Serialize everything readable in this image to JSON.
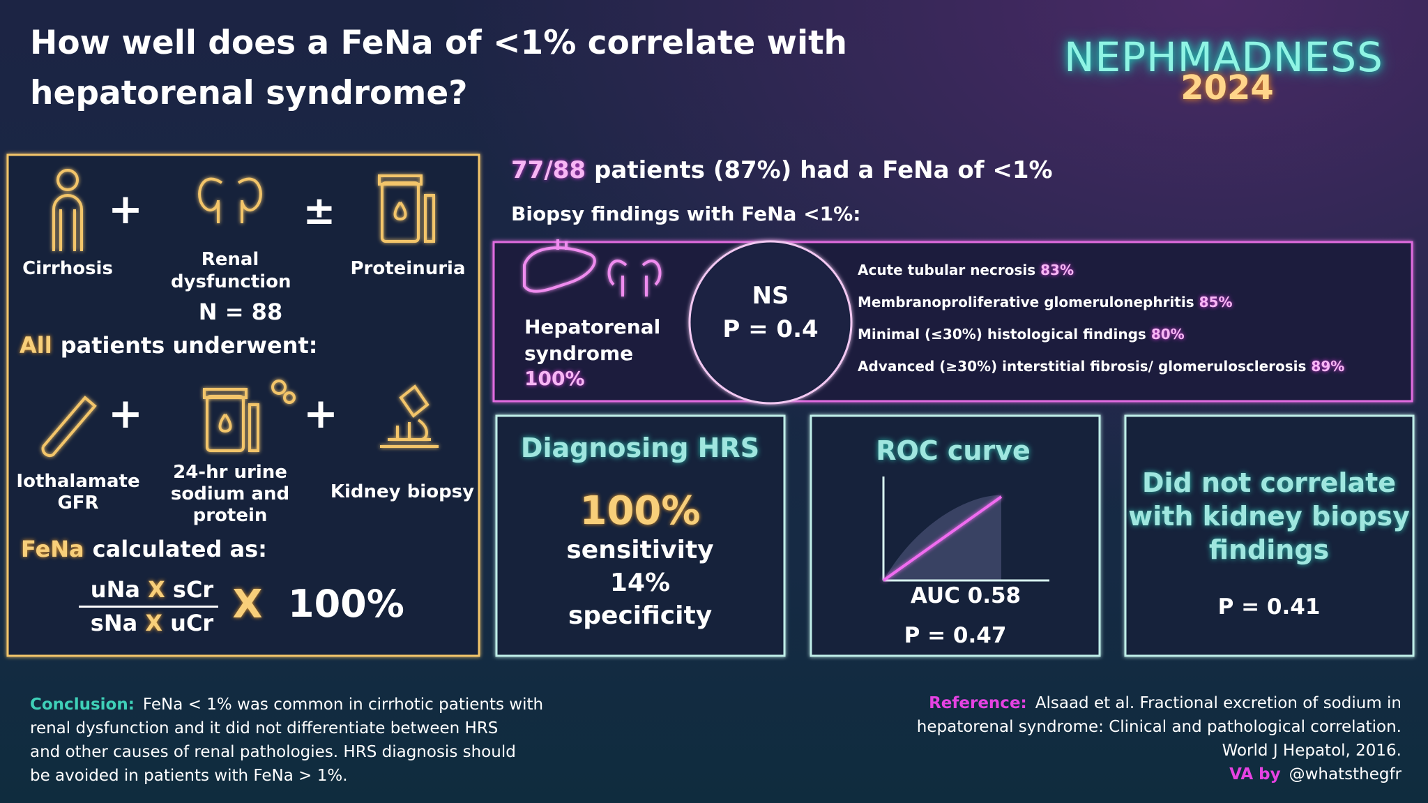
{
  "header": {
    "title_lines": [
      "How well does a FeNa of <1% correlate with",
      "hepatorenal syndrome?"
    ],
    "logo": {
      "name": "NEPHMADNESS",
      "year": "2024"
    }
  },
  "study": {
    "criteria": [
      "Cirrhosis",
      "Renal dysfunction",
      "Proteinuria"
    ],
    "criteria_operators": [
      "+",
      "±"
    ],
    "n": "N = 88",
    "underwent": {
      "highlight": "All",
      "text": "patients underwent:"
    },
    "tests": [
      "Iothalamate GFR",
      "24-hr urine sodium and protein",
      "Kidney biopsy"
    ],
    "test_operators": [
      "+",
      "+"
    ],
    "fena": {
      "highlight": "FeNa",
      "text": "calculated as:",
      "numerator": [
        "uNa",
        "X",
        "sCr"
      ],
      "denominator": [
        "sNa",
        "X",
        "uCr"
      ],
      "multiply": "X",
      "factor": "100%"
    }
  },
  "results": {
    "headline": {
      "highlight": "77/88",
      "text": "patients (87%) had a FeNa of <1%"
    },
    "biopsy_heading": "Biopsy findings with FeNa <1%:",
    "hrs": {
      "label": "Hepatorenal syndrome",
      "value": "100%"
    },
    "comparison": {
      "result": "NS",
      "p": "P = 0.4"
    },
    "findings": [
      {
        "label": "Acute tubular necrosis",
        "value": "83%"
      },
      {
        "label": "Membranoproliferative glomerulonephritis",
        "value": "85%"
      },
      {
        "label": "Minimal (≤30%) histological findings",
        "value": "80%"
      },
      {
        "label": "Advanced (≥30%) interstitial fibrosis/ glomerulosclerosis",
        "value": "89%"
      }
    ]
  },
  "panels": {
    "diagnosing": {
      "title": "Diagnosing HRS",
      "sensitivity_value": "100%",
      "sensitivity_label": "sensitivity",
      "specificity_value": "14%",
      "specificity_label": "specificity"
    },
    "roc": {
      "title": "ROC curve",
      "auc": "AUC 0.58",
      "p": "P = 0.47"
    },
    "correlation": {
      "text_lines": [
        "Did not correlate",
        "with kidney biopsy",
        "findings"
      ],
      "p": "P = 0.41"
    }
  },
  "footer": {
    "conclusion": {
      "label": "Conclusion:",
      "lines": [
        "FeNa < 1% was common in cirrhotic patients with",
        "renal dysfunction and it did not differentiate between HRS",
        "and other causes of renal pathologies. HRS diagnosis should",
        "be avoided in patients with FeNa > 1%."
      ]
    },
    "reference": {
      "label": "Reference:",
      "lines": [
        "Alsaad et al. Fractional excretion of sodium in",
        "hepatorenal syndrome: Clinical and pathological correlation.",
        "World J Hepatol, 2016."
      ]
    },
    "credit": {
      "label": "VA by",
      "handle": "@whatsthegfr"
    }
  }
}
